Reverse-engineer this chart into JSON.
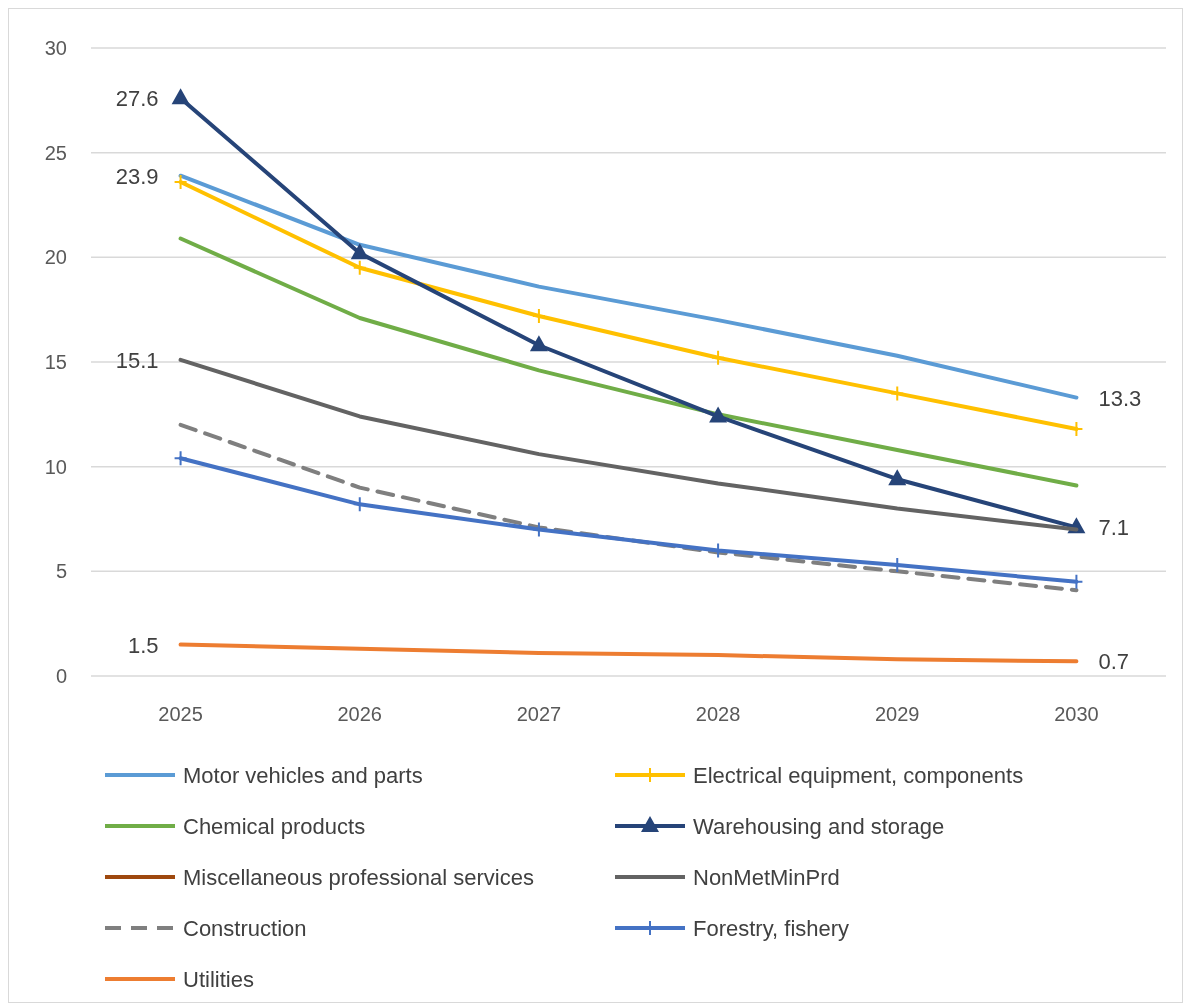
{
  "chart_data": {
    "type": "line",
    "categories": [
      "2025",
      "2026",
      "2027",
      "2028",
      "2029",
      "2030"
    ],
    "ylim": [
      0,
      30
    ],
    "yticks": [
      0,
      5,
      10,
      15,
      20,
      25,
      30
    ],
    "grid": "y",
    "legend": "bottom",
    "series": [
      {
        "name": "Motor vehicles and parts",
        "color": "#5b9bd5",
        "marker": "none",
        "values": [
          23.9,
          20.6,
          18.6,
          17.0,
          15.3,
          13.3
        ],
        "value_labels": [
          "23.9",
          null,
          null,
          null,
          null,
          "13.3"
        ]
      },
      {
        "name": "Electrical equipment, components",
        "color": "#ffc000",
        "marker": "cross",
        "values": [
          23.6,
          19.5,
          17.2,
          15.2,
          13.5,
          11.8
        ]
      },
      {
        "name": "Chemical products",
        "color": "#70ad47",
        "marker": "none",
        "values": [
          20.9,
          17.1,
          14.6,
          12.5,
          10.8,
          9.1
        ]
      },
      {
        "name": "Warehousing and storage",
        "color": "#264478",
        "marker": "triangle",
        "values": [
          27.6,
          20.2,
          15.8,
          12.4,
          9.4,
          7.1
        ],
        "value_labels": [
          "27.6",
          null,
          null,
          null,
          null,
          "7.1"
        ]
      },
      {
        "name": "Miscellaneous professional services",
        "color": "#9e480e",
        "marker": "none",
        "values": [
          null,
          null,
          null,
          null,
          null,
          null
        ]
      },
      {
        "name": "NonMetMinPrd",
        "color": "#636363",
        "marker": "none",
        "values": [
          15.1,
          12.4,
          10.6,
          9.2,
          8.0,
          7.0
        ],
        "value_labels": [
          "15.1",
          null,
          null,
          null,
          null,
          null
        ]
      },
      {
        "name": "Construction",
        "color": "#7f7f7f",
        "marker": "none",
        "line_style": "dashed",
        "values": [
          12.0,
          9.0,
          7.1,
          5.9,
          5.0,
          4.1
        ]
      },
      {
        "name": "Forestry, fishery",
        "color": "#4472c4",
        "marker": "cross",
        "values": [
          10.4,
          8.2,
          7.0,
          6.0,
          5.3,
          4.5
        ]
      },
      {
        "name": "Utilities",
        "color": "#ed7d31",
        "marker": "none",
        "values": [
          1.5,
          1.3,
          1.1,
          1.0,
          0.8,
          0.7
        ],
        "value_labels": [
          "1.5",
          null,
          null,
          null,
          null,
          "0.7"
        ]
      }
    ]
  }
}
